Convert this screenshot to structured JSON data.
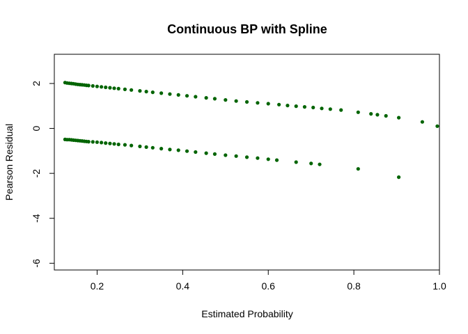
{
  "chart_data": {
    "type": "scatter",
    "title": "Continuous BP with Spline",
    "xlabel": "Estimated Probability",
    "ylabel": "Pearson Residual",
    "xlim": [
      0.1,
      1.0
    ],
    "ylim": [
      -6.3,
      3.3
    ],
    "x_ticks": [
      0.2,
      0.4,
      0.6,
      0.8,
      1.0
    ],
    "x_tick_labels": [
      "0.2",
      "0.4",
      "0.6",
      "0.8",
      "1.0"
    ],
    "y_ticks": [
      2,
      0,
      -2,
      -4,
      -6
    ],
    "y_tick_labels": [
      "2",
      "0",
      "-2",
      "-4",
      "-6"
    ],
    "point_color": "#006400",
    "grid": false,
    "series": [
      {
        "values": [
          [
            0.125,
            2.04
          ],
          [
            0.13,
            2.02
          ],
          [
            0.135,
            2.01
          ],
          [
            0.14,
            2.0
          ],
          [
            0.145,
            1.99
          ],
          [
            0.15,
            1.97
          ],
          [
            0.155,
            1.96
          ],
          [
            0.16,
            1.95
          ],
          [
            0.165,
            1.94
          ],
          [
            0.17,
            1.93
          ],
          [
            0.175,
            1.92
          ],
          [
            0.18,
            1.91
          ],
          [
            0.19,
            1.89
          ],
          [
            0.2,
            1.87
          ],
          [
            0.21,
            1.85
          ],
          [
            0.22,
            1.83
          ],
          [
            0.23,
            1.81
          ],
          [
            0.24,
            1.79
          ],
          [
            0.25,
            1.77
          ],
          [
            0.265,
            1.74
          ],
          [
            0.28,
            1.71
          ],
          [
            0.3,
            1.67
          ],
          [
            0.315,
            1.64
          ],
          [
            0.33,
            1.61
          ],
          [
            0.35,
            1.57
          ],
          [
            0.37,
            1.53
          ],
          [
            0.39,
            1.49
          ],
          [
            0.41,
            1.45
          ],
          [
            0.43,
            1.41
          ],
          [
            0.455,
            1.36
          ],
          [
            0.475,
            1.32
          ],
          [
            0.5,
            1.27
          ],
          [
            0.525,
            1.22
          ],
          [
            0.55,
            1.18
          ],
          [
            0.575,
            1.14
          ],
          [
            0.6,
            1.1
          ],
          [
            0.625,
            1.06
          ],
          [
            0.645,
            1.02
          ],
          [
            0.665,
            0.99
          ],
          [
            0.685,
            0.96
          ],
          [
            0.705,
            0.93
          ],
          [
            0.725,
            0.89
          ],
          [
            0.745,
            0.86
          ],
          [
            0.77,
            0.82
          ],
          [
            0.81,
            0.72
          ],
          [
            0.84,
            0.65
          ],
          [
            0.855,
            0.61
          ],
          [
            0.875,
            0.56
          ],
          [
            0.905,
            0.48
          ],
          [
            0.96,
            0.29
          ],
          [
            0.995,
            0.1
          ]
        ]
      },
      {
        "values": [
          [
            0.125,
            -0.49
          ],
          [
            0.13,
            -0.5
          ],
          [
            0.135,
            -0.5
          ],
          [
            0.14,
            -0.51
          ],
          [
            0.145,
            -0.52
          ],
          [
            0.15,
            -0.53
          ],
          [
            0.155,
            -0.54
          ],
          [
            0.16,
            -0.55
          ],
          [
            0.165,
            -0.56
          ],
          [
            0.17,
            -0.57
          ],
          [
            0.175,
            -0.58
          ],
          [
            0.18,
            -0.59
          ],
          [
            0.19,
            -0.6
          ],
          [
            0.2,
            -0.61
          ],
          [
            0.21,
            -0.63
          ],
          [
            0.22,
            -0.65
          ],
          [
            0.23,
            -0.67
          ],
          [
            0.24,
            -0.69
          ],
          [
            0.25,
            -0.71
          ],
          [
            0.265,
            -0.73
          ],
          [
            0.28,
            -0.76
          ],
          [
            0.3,
            -0.8
          ],
          [
            0.315,
            -0.83
          ],
          [
            0.33,
            -0.86
          ],
          [
            0.35,
            -0.9
          ],
          [
            0.37,
            -0.94
          ],
          [
            0.39,
            -0.97
          ],
          [
            0.41,
            -1.01
          ],
          [
            0.43,
            -1.05
          ],
          [
            0.455,
            -1.1
          ],
          [
            0.475,
            -1.14
          ],
          [
            0.5,
            -1.19
          ],
          [
            0.525,
            -1.23
          ],
          [
            0.55,
            -1.28
          ],
          [
            0.575,
            -1.32
          ],
          [
            0.6,
            -1.37
          ],
          [
            0.62,
            -1.41
          ],
          [
            0.665,
            -1.5
          ],
          [
            0.7,
            -1.56
          ],
          [
            0.72,
            -1.6
          ],
          [
            0.81,
            -1.8
          ],
          [
            0.905,
            -2.17
          ]
        ]
      }
    ]
  }
}
